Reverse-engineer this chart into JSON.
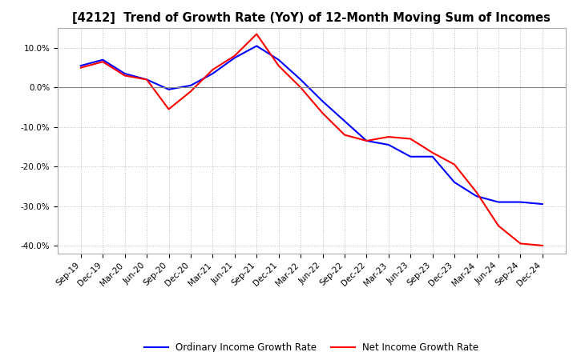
{
  "title": "[4212]  Trend of Growth Rate (YoY) of 12-Month Moving Sum of Incomes",
  "x_labels": [
    "Sep-19",
    "Dec-19",
    "Mar-20",
    "Jun-20",
    "Sep-20",
    "Dec-20",
    "Mar-21",
    "Jun-21",
    "Sep-21",
    "Dec-21",
    "Mar-22",
    "Jun-22",
    "Sep-22",
    "Dec-22",
    "Mar-23",
    "Jun-23",
    "Sep-23",
    "Dec-23",
    "Mar-24",
    "Jun-24",
    "Sep-24",
    "Dec-24"
  ],
  "ordinary_income": [
    5.5,
    7.0,
    3.5,
    2.0,
    -0.5,
    0.5,
    3.5,
    7.5,
    10.5,
    7.0,
    2.0,
    -3.5,
    -8.5,
    -13.5,
    -14.5,
    -17.5,
    -17.5,
    -24.0,
    -27.5,
    -29.0,
    -29.0,
    -29.5
  ],
  "net_income": [
    5.0,
    6.5,
    3.0,
    2.0,
    -5.5,
    -1.0,
    4.5,
    8.0,
    13.5,
    5.5,
    0.0,
    -6.5,
    -12.0,
    -13.5,
    -12.5,
    -13.0,
    -16.5,
    -19.5,
    -26.5,
    -35.0,
    -39.5,
    -40.0
  ],
  "ordinary_color": "#0000FF",
  "net_color": "#FF0000",
  "ylim_min": -42,
  "ylim_max": 15,
  "ytick_values": [
    -40,
    -30,
    -20,
    -10,
    0,
    10
  ],
  "background_color": "#FFFFFF",
  "grid_color": "#BBBBBB",
  "legend_ordinary": "Ordinary Income Growth Rate",
  "legend_net": "Net Income Growth Rate",
  "title_fontsize": 10.5,
  "tick_fontsize": 7.5,
  "legend_fontsize": 8.5,
  "line_width": 1.5
}
